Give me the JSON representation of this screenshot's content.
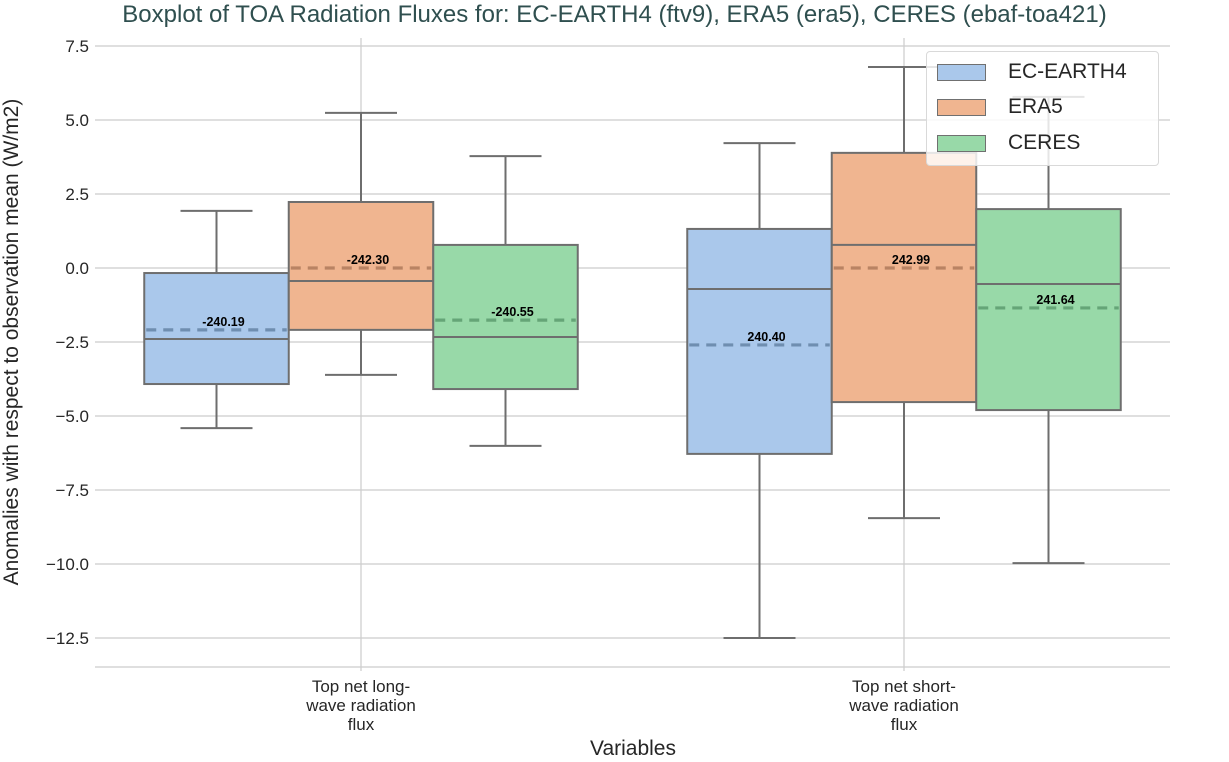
{
  "chart": {
    "title": "Boxplot of TOA Radiation Fluxes for: EC-EARTH4 (ftv9), ERA5 (era5), CERES (ebaf-toa421)",
    "xlabel": "Variables",
    "ylabel": "Anomalies with respect to observation mean (W/m2)"
  },
  "legend": {
    "items": [
      {
        "label": "EC-EARTH4",
        "color": "#aac8eb"
      },
      {
        "label": "ERA5",
        "color": "#f0b590"
      },
      {
        "label": "CERES",
        "color": "#98d9a8"
      }
    ]
  },
  "chart_data": {
    "type": "box",
    "title": "Boxplot of TOA Radiation Fluxes for: EC-EARTH4 (ftv9), ERA5 (era5), CERES (ebaf-toa421)",
    "xlabel": "Variables",
    "ylabel": "Anomalies with respect to observation mean (W/m2)",
    "categories": [
      [
        "Top net long-",
        "wave radiation",
        "flux"
      ],
      [
        "Top net short-",
        "wave radiation",
        "flux"
      ]
    ],
    "yticks": [
      7.5,
      5.0,
      2.5,
      0.0,
      -2.5,
      -5.0,
      -7.5,
      -10.0,
      -12.5
    ],
    "ytick_labels": [
      "7.5",
      "5.0",
      "2.5",
      "0.0",
      "−2.5",
      "−5.0",
      "−7.5",
      "−10.0",
      "−12.5"
    ],
    "ylim": [
      -13.4,
      8.0
    ],
    "grid": true,
    "legend_position": "upper right",
    "series": [
      {
        "name": "EC-EARTH4",
        "color": "#aac8eb",
        "mean_color": "#6f8eb0",
        "boxes": [
          {
            "whislo": -5.41,
            "q1": -3.92,
            "median": -2.4,
            "q3": -0.17,
            "whishi": 1.93,
            "mean": -2.09,
            "mean_label": "-240.19"
          },
          {
            "whislo": -12.5,
            "q1": -6.28,
            "median": -0.71,
            "q3": 1.32,
            "whishi": 4.22,
            "mean": -2.6,
            "mean_label": "240.40"
          }
        ]
      },
      {
        "name": "ERA5",
        "color": "#f0b590",
        "mean_color": "#b98363",
        "boxes": [
          {
            "whislo": -3.61,
            "q1": -2.09,
            "median": -0.44,
            "q3": 2.23,
            "whishi": 5.24,
            "mean": 0.0,
            "mean_label": "-242.30"
          },
          {
            "whislo": -8.45,
            "q1": -4.53,
            "median": 0.78,
            "q3": 3.89,
            "whishi": 6.79,
            "mean": 0.0,
            "mean_label": "242.99"
          }
        ]
      },
      {
        "name": "CERES",
        "color": "#98d9a8",
        "mean_color": "#65a577",
        "boxes": [
          {
            "whislo": -6.01,
            "q1": -4.09,
            "median": -2.33,
            "q3": 0.78,
            "whishi": 3.78,
            "mean": -1.76,
            "mean_label": "-240.55"
          },
          {
            "whislo": -9.97,
            "q1": -4.8,
            "median": -0.54,
            "q3": 1.99,
            "whishi": 5.78,
            "mean": -1.35,
            "mean_label": "241.64"
          }
        ]
      }
    ]
  }
}
